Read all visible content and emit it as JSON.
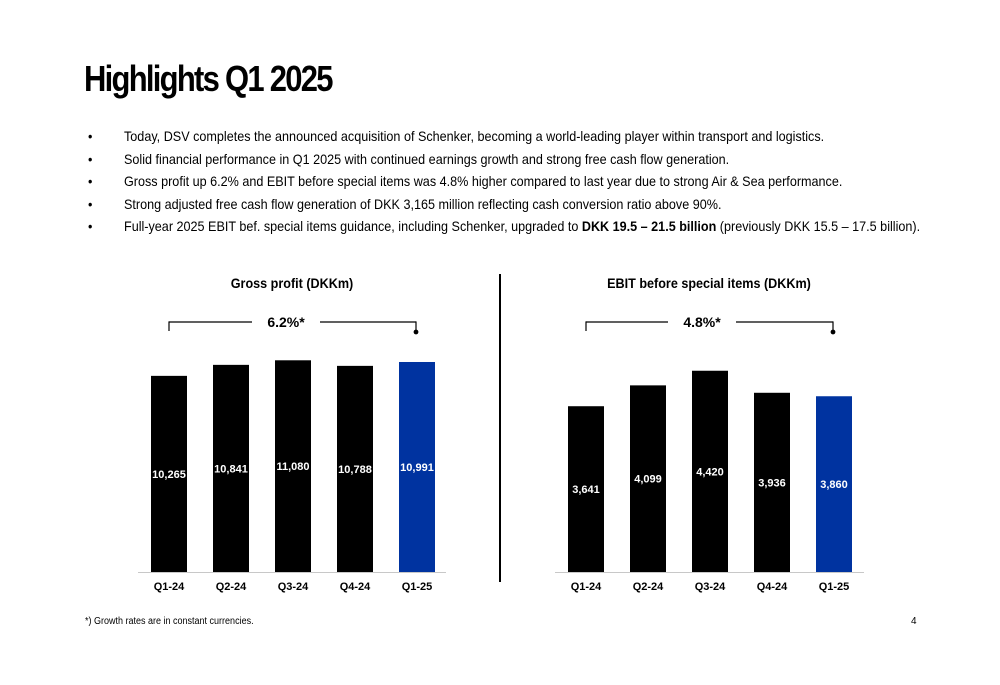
{
  "page": {
    "title": "Highlights Q1 2025",
    "bullets": [
      {
        "text": "Today, DSV completes the announced acquisition of Schenker, becoming a world-leading player within transport and logistics."
      },
      {
        "text": "Solid financial performance in Q1 2025 with continued earnings growth and strong free cash flow generation."
      },
      {
        "text": "Gross profit up 6.2% and EBIT before special items was 4.8% higher compared to last year due to strong Air & Sea performance."
      },
      {
        "text": "Strong adjusted free cash flow generation of DKK 3,165 million reflecting cash conversion ratio above 90%."
      },
      {
        "pre": "Full-year 2025 EBIT bef. special items guidance, including Schenker, upgraded to ",
        "bold": "DKK 19.5 – 21.5 billion",
        "post": " (previously DKK 15.5 – 17.5 billion)."
      }
    ],
    "bullet_symbol": "•",
    "footnote": "*) Growth rates are in constant currencies.",
    "page_number": "4"
  },
  "colors": {
    "bar": "#000000",
    "highlight_bar": "#0033a0",
    "text": "#000000",
    "axis": "#c8c8c8"
  },
  "chart_data": [
    {
      "type": "bar",
      "title": "Gross profit (DKKm)",
      "categories": [
        "Q1-24",
        "Q2-24",
        "Q3-24",
        "Q4-24",
        "Q1-25"
      ],
      "values": [
        10265,
        10841,
        11080,
        10788,
        10991
      ],
      "value_labels": [
        "10,265",
        "10,841",
        "11,080",
        "10,788",
        "10,991"
      ],
      "highlight_index": 4,
      "growth_label": "6.2%*",
      "ylim": [
        0,
        11200
      ],
      "xlabel": "",
      "ylabel": ""
    },
    {
      "type": "bar",
      "title": "EBIT before special items (DKKm)",
      "categories": [
        "Q1-24",
        "Q2-24",
        "Q3-24",
        "Q4-24",
        "Q1-25"
      ],
      "values": [
        3641,
        4099,
        4420,
        3936,
        3860
      ],
      "value_labels": [
        "3,641",
        "4,099",
        "4,420",
        "3,936",
        "3,860"
      ],
      "highlight_index": 4,
      "growth_label": "4.8%*",
      "ylim": [
        0,
        4700
      ],
      "xlabel": "",
      "ylabel": ""
    }
  ]
}
